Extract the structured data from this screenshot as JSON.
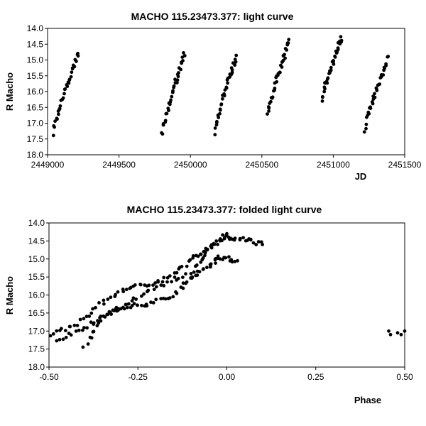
{
  "chart_data": [
    {
      "type": "scatter",
      "title": "MACHO 115.23473.377: light curve",
      "xlabel": "JD",
      "ylabel": "R Macho",
      "xlim": [
        2449000,
        2451500
      ],
      "ylim": [
        14.0,
        18.0
      ],
      "y_inverted": true,
      "grid": false,
      "x_ticks": [
        "2449000",
        "2449500",
        "2450000",
        "2450500",
        "2451000",
        "2451500"
      ],
      "y_ticks": [
        "14.0",
        "14.5",
        "15.0",
        "15.5",
        "16.0",
        "16.5",
        "17.0",
        "17.5",
        "18.0"
      ],
      "marker_color": "#000000",
      "segments": [
        {
          "x0": 2449040,
          "x1": 2449215,
          "y0": 17.3,
          "y1": 14.8
        },
        {
          "x0": 2449800,
          "x1": 2449960,
          "y0": 17.4,
          "y1": 14.8
        },
        {
          "x0": 2450170,
          "x1": 2450320,
          "y0": 17.3,
          "y1": 14.9
        },
        {
          "x0": 2450540,
          "x1": 2450690,
          "y0": 16.8,
          "y1": 14.4
        },
        {
          "x0": 2450920,
          "x1": 2451060,
          "y0": 16.3,
          "y1": 14.3
        },
        {
          "x0": 2451220,
          "x1": 2451380,
          "y0": 17.2,
          "y1": 14.95
        }
      ]
    },
    {
      "type": "scatter",
      "title": "MACHO 115.23473.377: folded light curve",
      "xlabel": "Phase",
      "ylabel": "R Macho",
      "xlim": [
        -0.5,
        0.5
      ],
      "ylim": [
        14.0,
        18.0
      ],
      "y_inverted": true,
      "grid": false,
      "x_ticks": [
        "-0.50",
        "-0.25",
        "0.00",
        "0.25",
        "0.50"
      ],
      "y_ticks": [
        "14.0",
        "14.5",
        "15.0",
        "15.5",
        "16.0",
        "16.5",
        "17.0",
        "17.5",
        "18.0"
      ],
      "marker_color": "#000000",
      "branches": [
        {
          "x": [
            -0.5,
            -0.42,
            -0.35,
            -0.28,
            -0.22,
            -0.15,
            -0.1,
            -0.05,
            0.0,
            0.05,
            0.1
          ],
          "y": [
            17.1,
            16.8,
            16.2,
            15.8,
            15.7,
            15.5,
            15.0,
            14.7,
            14.4,
            14.45,
            14.6
          ]
        },
        {
          "x": [
            -0.48,
            -0.4,
            -0.33,
            -0.28,
            -0.22,
            -0.15,
            -0.1,
            -0.05,
            -0.02,
            0.03
          ],
          "y": [
            17.3,
            16.9,
            16.5,
            16.3,
            16.25,
            16.0,
            15.5,
            15.2,
            14.95,
            15.05
          ]
        },
        {
          "x": [
            -0.4,
            -0.35,
            -0.28,
            -0.2,
            -0.1,
            -0.05,
            0.0
          ],
          "y": [
            17.4,
            16.6,
            16.2,
            15.8,
            15.4,
            14.7,
            14.3
          ]
        }
      ],
      "isolated_points": [
        {
          "x": 0.455,
          "y": 17.0
        },
        {
          "x": 0.46,
          "y": 17.1
        },
        {
          "x": 0.48,
          "y": 17.05
        },
        {
          "x": 0.5,
          "y": 17.0
        },
        {
          "x": 0.49,
          "y": 17.1
        }
      ]
    }
  ]
}
